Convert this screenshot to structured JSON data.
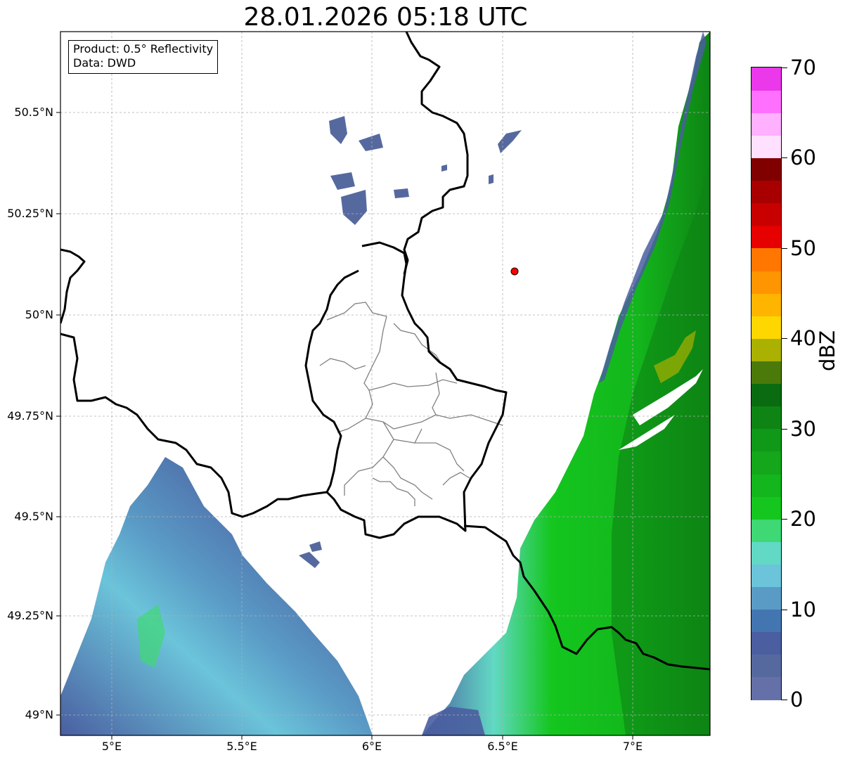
{
  "title": "28.01.2026 05:18 UTC",
  "info": {
    "product": "Product: 0.5° Reflectivity",
    "data": "Data: DWD"
  },
  "lat_labels": [
    "50.5°N",
    "50.25°N",
    "50°N",
    "49.75°N",
    "49.5°N",
    "49.25°N",
    "49°N"
  ],
  "lon_labels": [
    "5°E",
    "5.5°E",
    "6°E",
    "6.5°E",
    "7°E"
  ],
  "marker": {
    "lon": 6.55,
    "lat": 50.11,
    "color": "#ff0000"
  },
  "colorbar": {
    "unit": "dBZ",
    "min": 0,
    "max": 70,
    "tick_labels": [
      "0",
      "10",
      "20",
      "30",
      "40",
      "50",
      "60",
      "70"
    ],
    "colors": [
      "#6470a7",
      "#56699f",
      "#4a5ea0",
      "#4376b0",
      "#5a9bc6",
      "#6bc4da",
      "#62d9c4",
      "#3ed874",
      "#14c61e",
      "#13b61c",
      "#14a61b",
      "#109818",
      "#0e8414",
      "#0a6b10",
      "#4b7a0a",
      "#aab100",
      "#ffd700",
      "#ffb500",
      "#ff9500",
      "#ff7700",
      "#e60000",
      "#c80000",
      "#a80000",
      "#800000",
      "#ffe0ff",
      "#ffb0ff",
      "#ff70ff",
      "#ea38ea"
    ]
  },
  "colors": {
    "border": "#000000",
    "district": "#808080",
    "grid": "#b0b0b0"
  }
}
